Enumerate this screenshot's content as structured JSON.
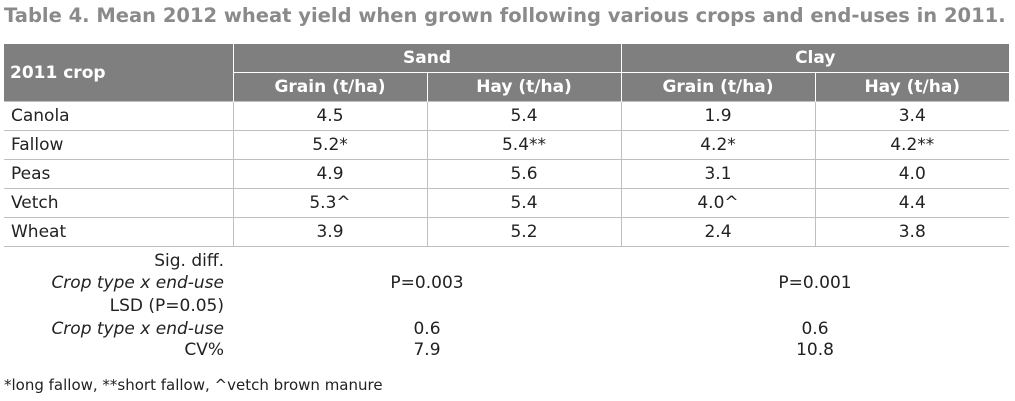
{
  "title": "Table 4. Mean 2012 wheat yield when grown following various crops and end-uses in 2011.",
  "header": {
    "row_label": "2011 crop",
    "groups": [
      "Sand",
      "Clay"
    ],
    "subcols": [
      "Grain (t/ha)",
      "Hay (t/ha)",
      "Grain (t/ha)",
      "Hay (t/ha)"
    ]
  },
  "rows": [
    {
      "crop": "Canola",
      "values": [
        "4.5",
        "5.4",
        "1.9",
        "3.4"
      ]
    },
    {
      "crop": "Fallow",
      "values": [
        "5.2*",
        "5.4**",
        "4.2*",
        "4.2**"
      ]
    },
    {
      "crop": "Peas",
      "values": [
        "4.9",
        "5.6",
        "3.1",
        "4.0"
      ]
    },
    {
      "crop": "Vetch",
      "values": [
        "5.3^",
        "5.4",
        "4.0^",
        "4.4"
      ]
    },
    {
      "crop": "Wheat",
      "values": [
        "3.9",
        "5.2",
        "2.4",
        "3.8"
      ]
    }
  ],
  "stats": {
    "sig_label": "Sig. diff.",
    "sig_sub": "Crop type x end-use",
    "sig_sand": "P=0.003",
    "sig_clay": "P=0.001",
    "lsd_label": "LSD (P=0.05)",
    "lsd_sub": "Crop type x end-use",
    "lsd_sand": "0.6",
    "lsd_clay": "0.6",
    "cv_label": "CV%",
    "cv_sand": "7.9",
    "cv_clay": "10.8"
  },
  "footnote": "*long fallow, **short fallow, ^vetch brown manure"
}
